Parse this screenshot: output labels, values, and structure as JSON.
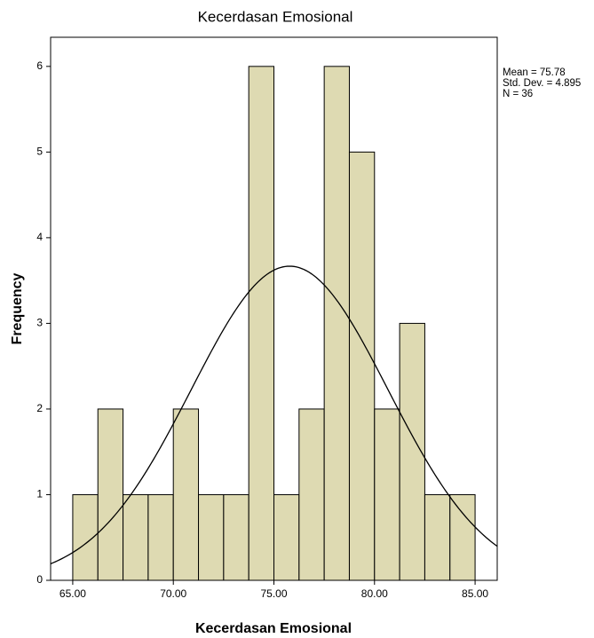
{
  "chart_data": {
    "type": "histogram",
    "title": "Kecerdasan Emosional",
    "xlabel": "Kecerdasan Emosional",
    "ylabel": "Frequency",
    "bins": [
      65,
      66.25,
      67.5,
      68.75,
      70,
      71.25,
      72.5,
      73.75,
      75,
      76.25,
      77.5,
      78.75,
      80,
      81.25,
      82.5,
      83.75,
      85
    ],
    "counts": [
      1,
      2,
      1,
      1,
      2,
      1,
      1,
      6,
      1,
      2,
      6,
      5,
      2,
      3,
      1,
      1
    ],
    "color": "#d8d3a4",
    "xlim": [
      63.9,
      86.1
    ],
    "ylim": [
      0,
      6.34
    ],
    "xticks": [
      {
        "value": 65,
        "label": "65.00"
      },
      {
        "value": 70,
        "label": "70.00"
      },
      {
        "value": 75,
        "label": "75.00"
      },
      {
        "value": 80,
        "label": "80.00"
      },
      {
        "value": 85,
        "label": "85.00"
      }
    ],
    "yticks": [
      0,
      1,
      2,
      3,
      4,
      5,
      6
    ],
    "stats": [
      {
        "value": 75.78,
        "label": "Mean = 75.78"
      },
      {
        "value": 4.895,
        "label": "Std. Dev. = 4.895"
      },
      {
        "value": 36,
        "label": "N = 36"
      }
    ]
  }
}
